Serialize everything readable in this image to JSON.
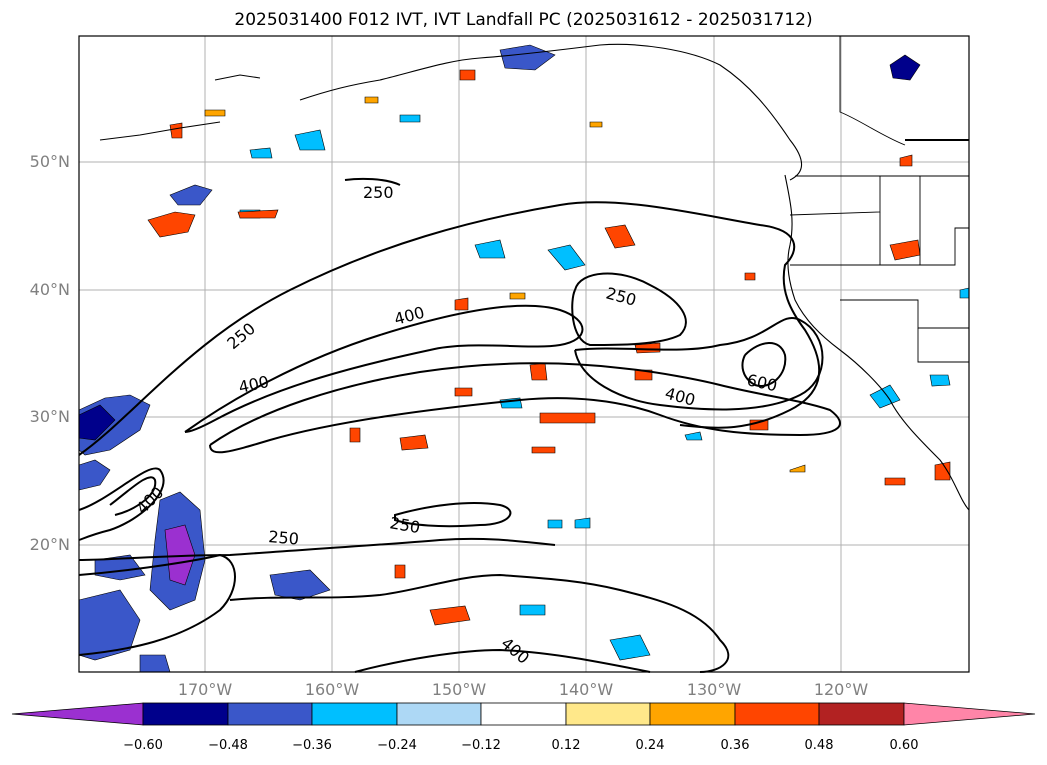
{
  "title": "2025031400 F012 IVT, IVT Landfall PC (2025031612 - 2025031712)",
  "map": {
    "lat_labels": [
      "50°N",
      "40°N",
      "30°N",
      "20°N"
    ],
    "lon_labels": [
      "170°W",
      "160°W",
      "150°W",
      "140°W",
      "130°W",
      "120°W"
    ],
    "contour_labels": [
      "250",
      "250",
      "250",
      "250",
      "250",
      "400",
      "400",
      "400",
      "400",
      "400",
      "600"
    ]
  },
  "colorbar": {
    "ticks": [
      "−0.60",
      "−0.48",
      "−0.36",
      "−0.24",
      "−0.12",
      "0.12",
      "0.24",
      "0.36",
      "0.48",
      "0.60"
    ],
    "colors": [
      "#9b30d0",
      "#00008b",
      "#3a57c9",
      "#00bfff",
      "#add8f5",
      "#ffffff",
      "#ffe88a",
      "#ffa500",
      "#ff4500",
      "#b22222",
      "#ff85a8"
    ]
  }
}
